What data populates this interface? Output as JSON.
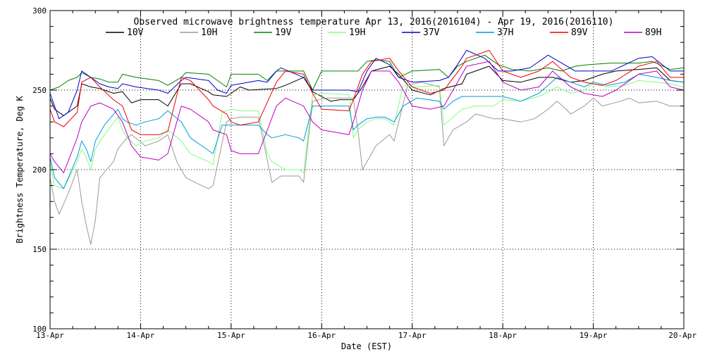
{
  "chart_data": {
    "type": "line",
    "title": "Observed microwave brightness temperature Apr 13, 2016(2016104) - Apr 19, 2016(2016110)",
    "xlabel": "Date (EST)",
    "ylabel": "Brightness Temperature, Deg K",
    "xlim": [
      0,
      7
    ],
    "ylim": [
      100,
      300
    ],
    "x_unit": "days since 13-Apr 00:00",
    "x_ticks": [
      {
        "value": 0,
        "label": "13-Apr"
      },
      {
        "value": 1,
        "label": "14-Apr"
      },
      {
        "value": 2,
        "label": "15-Apr"
      },
      {
        "value": 3,
        "label": "16-Apr"
      },
      {
        "value": 4,
        "label": "17-Apr"
      },
      {
        "value": 5,
        "label": "18-Apr"
      },
      {
        "value": 6,
        "label": "19-Apr"
      },
      {
        "value": 7,
        "label": "20-Apr"
      }
    ],
    "y_ticks": [
      {
        "value": 100,
        "label": "100"
      },
      {
        "value": 150,
        "label": "150"
      },
      {
        "value": 200,
        "label": "200"
      },
      {
        "value": 250,
        "label": "250"
      },
      {
        "value": 300,
        "label": "300"
      }
    ],
    "y_minor_step": 10,
    "grid": "dotted",
    "legend_position": "top",
    "series": [
      {
        "name": "10V",
        "color": "#000000",
        "x": [
          0,
          0.05,
          0.15,
          0.3,
          0.35,
          0.45,
          0.55,
          0.7,
          0.8,
          0.9,
          1.0,
          1.2,
          1.3,
          1.45,
          1.55,
          1.75,
          1.8,
          1.95,
          2.0,
          2.1,
          2.2,
          2.5,
          2.6,
          2.8,
          2.9,
          3.1,
          3.2,
          3.35,
          3.45,
          3.55,
          3.75,
          3.85,
          4.0,
          4.2,
          4.35,
          4.55,
          4.6,
          4.85,
          5.0,
          5.2,
          5.4,
          5.55,
          5.75,
          5.9,
          6.1,
          6.25,
          6.5,
          6.7,
          6.85,
          7.0
        ],
        "y": [
          245,
          238,
          234,
          240,
          254,
          252,
          251,
          248,
          249,
          242,
          244,
          244,
          240,
          254,
          254,
          249,
          247,
          246,
          248,
          252,
          250,
          251,
          253,
          258,
          249,
          243,
          244,
          244,
          252,
          262,
          265,
          260,
          250,
          247,
          251,
          254,
          260,
          265,
          256,
          255,
          258,
          258,
          255,
          256,
          260,
          262,
          263,
          264,
          256,
          255
        ]
      },
      {
        "name": "10H",
        "color": "#999999",
        "x": [
          0,
          0.05,
          0.1,
          0.2,
          0.3,
          0.35,
          0.4,
          0.45,
          0.5,
          0.55,
          0.7,
          0.75,
          0.85,
          0.9,
          1.05,
          1.2,
          1.3,
          1.4,
          1.5,
          1.6,
          1.75,
          1.8,
          1.95,
          2.0,
          2.1,
          2.3,
          2.45,
          2.55,
          2.75,
          2.8,
          2.9,
          3.05,
          3.2,
          3.35,
          3.4,
          3.45,
          3.5,
          3.6,
          3.75,
          3.8,
          3.95,
          4.1,
          4.3,
          4.35,
          4.45,
          4.6,
          4.7,
          4.9,
          5.0,
          5.2,
          5.35,
          5.5,
          5.6,
          5.7,
          5.75,
          5.9,
          6.0,
          6.1,
          6.3,
          6.4,
          6.5,
          6.7,
          6.85,
          7.0
        ],
        "y": [
          195,
          180,
          172,
          185,
          200,
          180,
          165,
          153,
          168,
          195,
          205,
          213,
          220,
          222,
          215,
          218,
          222,
          205,
          195,
          192,
          188,
          190,
          230,
          232,
          233,
          233,
          192,
          196,
          196,
          192,
          243,
          245,
          245,
          245,
          225,
          200,
          205,
          215,
          222,
          218,
          253,
          255,
          252,
          215,
          225,
          230,
          235,
          232,
          232,
          230,
          232,
          238,
          243,
          238,
          235,
          240,
          245,
          240,
          243,
          245,
          242,
          243,
          240,
          240
        ]
      },
      {
        "name": "19V",
        "color": "#008000",
        "x": [
          0,
          0.1,
          0.2,
          0.3,
          0.35,
          0.45,
          0.55,
          0.65,
          0.75,
          0.8,
          0.95,
          1.2,
          1.3,
          1.45,
          1.5,
          1.75,
          1.85,
          1.95,
          2.0,
          2.3,
          2.4,
          2.5,
          2.55,
          2.8,
          2.9,
          3.0,
          3.3,
          3.4,
          3.5,
          3.6,
          3.75,
          3.85,
          4.0,
          4.3,
          4.4,
          4.5,
          4.6,
          4.8,
          4.95,
          5.1,
          5.3,
          5.5,
          5.65,
          5.8,
          5.95,
          6.2,
          6.5,
          6.65,
          6.85,
          7.0
        ],
        "y": [
          250,
          252,
          256,
          258,
          261,
          258,
          257,
          255,
          255,
          260,
          258,
          256,
          253,
          258,
          261,
          260,
          256,
          252,
          260,
          260,
          256,
          262,
          262,
          262,
          250,
          262,
          262,
          262,
          268,
          269,
          268,
          258,
          262,
          263,
          258,
          265,
          268,
          272,
          266,
          263,
          262,
          264,
          262,
          265,
          266,
          267,
          267,
          268,
          263,
          264
        ]
      },
      {
        "name": "19H",
        "color": "#80ff80",
        "x": [
          0,
          0.05,
          0.15,
          0.3,
          0.35,
          0.4,
          0.45,
          0.5,
          0.6,
          0.75,
          0.8,
          0.85,
          0.95,
          1.05,
          1.2,
          1.3,
          1.45,
          1.55,
          1.75,
          1.8,
          1.9,
          2.0,
          2.1,
          2.3,
          2.4,
          2.45,
          2.6,
          2.75,
          2.8,
          2.9,
          3.05,
          3.3,
          3.35,
          3.4,
          3.5,
          3.6,
          3.7,
          3.8,
          3.9,
          4.05,
          4.3,
          4.35,
          4.45,
          4.55,
          4.7,
          4.9,
          5.0,
          5.2,
          5.4,
          5.6,
          5.75,
          5.9,
          6.0,
          6.15,
          6.35,
          6.5,
          6.7,
          6.85,
          7.0
        ],
        "y": [
          205,
          190,
          188,
          205,
          213,
          208,
          200,
          213,
          222,
          233,
          225,
          220,
          215,
          218,
          220,
          225,
          218,
          210,
          205,
          203,
          236,
          238,
          237,
          237,
          210,
          205,
          200,
          200,
          198,
          247,
          248,
          247,
          220,
          225,
          230,
          232,
          232,
          228,
          253,
          252,
          253,
          228,
          233,
          238,
          240,
          240,
          244,
          243,
          246,
          252,
          248,
          250,
          254,
          252,
          253,
          256,
          255,
          254,
          252
        ]
      },
      {
        "name": "37V",
        "color": "#0000cc",
        "x": [
          0,
          0.1,
          0.2,
          0.3,
          0.35,
          0.45,
          0.55,
          0.65,
          0.75,
          0.8,
          0.95,
          1.2,
          1.3,
          1.45,
          1.5,
          1.75,
          1.85,
          1.95,
          2.0,
          2.3,
          2.4,
          2.5,
          2.55,
          2.8,
          2.9,
          3.0,
          3.3,
          3.4,
          3.5,
          3.6,
          3.75,
          3.85,
          4.0,
          4.3,
          4.4,
          4.5,
          4.6,
          4.8,
          4.95,
          5.1,
          5.3,
          5.5,
          5.65,
          5.8,
          5.95,
          6.2,
          6.5,
          6.65,
          6.85,
          7.0
        ],
        "y": [
          248,
          232,
          236,
          250,
          262,
          258,
          254,
          252,
          251,
          254,
          252,
          250,
          248,
          256,
          258,
          256,
          250,
          248,
          253,
          256,
          255,
          262,
          264,
          258,
          250,
          250,
          250,
          249,
          262,
          270,
          266,
          258,
          255,
          256,
          258,
          266,
          275,
          270,
          262,
          262,
          264,
          272,
          267,
          262,
          262,
          262,
          270,
          271,
          262,
          262
        ]
      },
      {
        "name": "37H",
        "color": "#0099dd",
        "x": [
          0,
          0.05,
          0.15,
          0.3,
          0.35,
          0.4,
          0.45,
          0.5,
          0.6,
          0.75,
          0.8,
          0.85,
          0.95,
          1.05,
          1.2,
          1.3,
          1.45,
          1.55,
          1.75,
          1.8,
          1.9,
          2.0,
          2.1,
          2.3,
          2.4,
          2.45,
          2.6,
          2.75,
          2.8,
          2.9,
          3.05,
          3.3,
          3.35,
          3.4,
          3.5,
          3.6,
          3.7,
          3.8,
          3.9,
          4.05,
          4.3,
          4.35,
          4.45,
          4.55,
          4.7,
          4.9,
          5.0,
          5.2,
          5.4,
          5.6,
          5.75,
          5.9,
          6.0,
          6.15,
          6.35,
          6.5,
          6.7,
          6.85,
          7.0
        ],
        "y": [
          208,
          195,
          188,
          208,
          218,
          213,
          205,
          218,
          228,
          238,
          232,
          230,
          228,
          230,
          232,
          237,
          230,
          220,
          212,
          210,
          228,
          228,
          228,
          228,
          222,
          220,
          222,
          220,
          218,
          240,
          240,
          240,
          225,
          228,
          232,
          233,
          233,
          230,
          240,
          245,
          243,
          238,
          243,
          246,
          246,
          246,
          246,
          243,
          248,
          258,
          255,
          252,
          255,
          253,
          255,
          260,
          258,
          256,
          255
        ]
      },
      {
        "name": "89V",
        "color": "#ee0000",
        "x": [
          0,
          0.05,
          0.15,
          0.3,
          0.35,
          0.45,
          0.55,
          0.7,
          0.8,
          0.9,
          1.0,
          1.2,
          1.3,
          1.45,
          1.55,
          1.75,
          1.8,
          1.95,
          2.0,
          2.1,
          2.3,
          2.5,
          2.6,
          2.8,
          2.9,
          3.0,
          3.3,
          3.35,
          3.45,
          3.55,
          3.75,
          3.85,
          4.0,
          4.2,
          4.35,
          4.55,
          4.6,
          4.85,
          5.0,
          5.2,
          5.4,
          5.55,
          5.75,
          5.9,
          6.1,
          6.25,
          6.5,
          6.7,
          6.85,
          7.0
        ],
        "y": [
          238,
          230,
          227,
          236,
          255,
          258,
          252,
          244,
          240,
          225,
          222,
          222,
          224,
          258,
          256,
          244,
          240,
          235,
          230,
          228,
          230,
          255,
          262,
          260,
          248,
          238,
          237,
          244,
          260,
          268,
          270,
          262,
          252,
          248,
          250,
          265,
          270,
          275,
          262,
          258,
          262,
          268,
          258,
          255,
          253,
          256,
          265,
          268,
          258,
          258
        ]
      },
      {
        "name": "89H",
        "color": "#bb00bb",
        "x": [
          0,
          0.05,
          0.15,
          0.3,
          0.35,
          0.45,
          0.55,
          0.7,
          0.8,
          0.9,
          1.0,
          1.2,
          1.3,
          1.45,
          1.55,
          1.75,
          1.8,
          1.95,
          2.0,
          2.1,
          2.3,
          2.5,
          2.6,
          2.8,
          2.9,
          3.0,
          3.3,
          3.35,
          3.45,
          3.55,
          3.75,
          3.85,
          4.0,
          4.2,
          4.35,
          4.55,
          4.6,
          4.85,
          5.0,
          5.2,
          5.4,
          5.55,
          5.75,
          5.9,
          6.1,
          6.25,
          6.5,
          6.7,
          6.85,
          7.0
        ],
        "y": [
          210,
          205,
          198,
          220,
          230,
          240,
          242,
          238,
          230,
          215,
          208,
          206,
          210,
          240,
          238,
          230,
          225,
          222,
          212,
          210,
          210,
          240,
          245,
          240,
          230,
          225,
          222,
          230,
          250,
          262,
          262,
          255,
          240,
          238,
          240,
          260,
          265,
          268,
          255,
          250,
          252,
          262,
          252,
          248,
          246,
          250,
          260,
          262,
          252,
          250
        ]
      }
    ]
  }
}
